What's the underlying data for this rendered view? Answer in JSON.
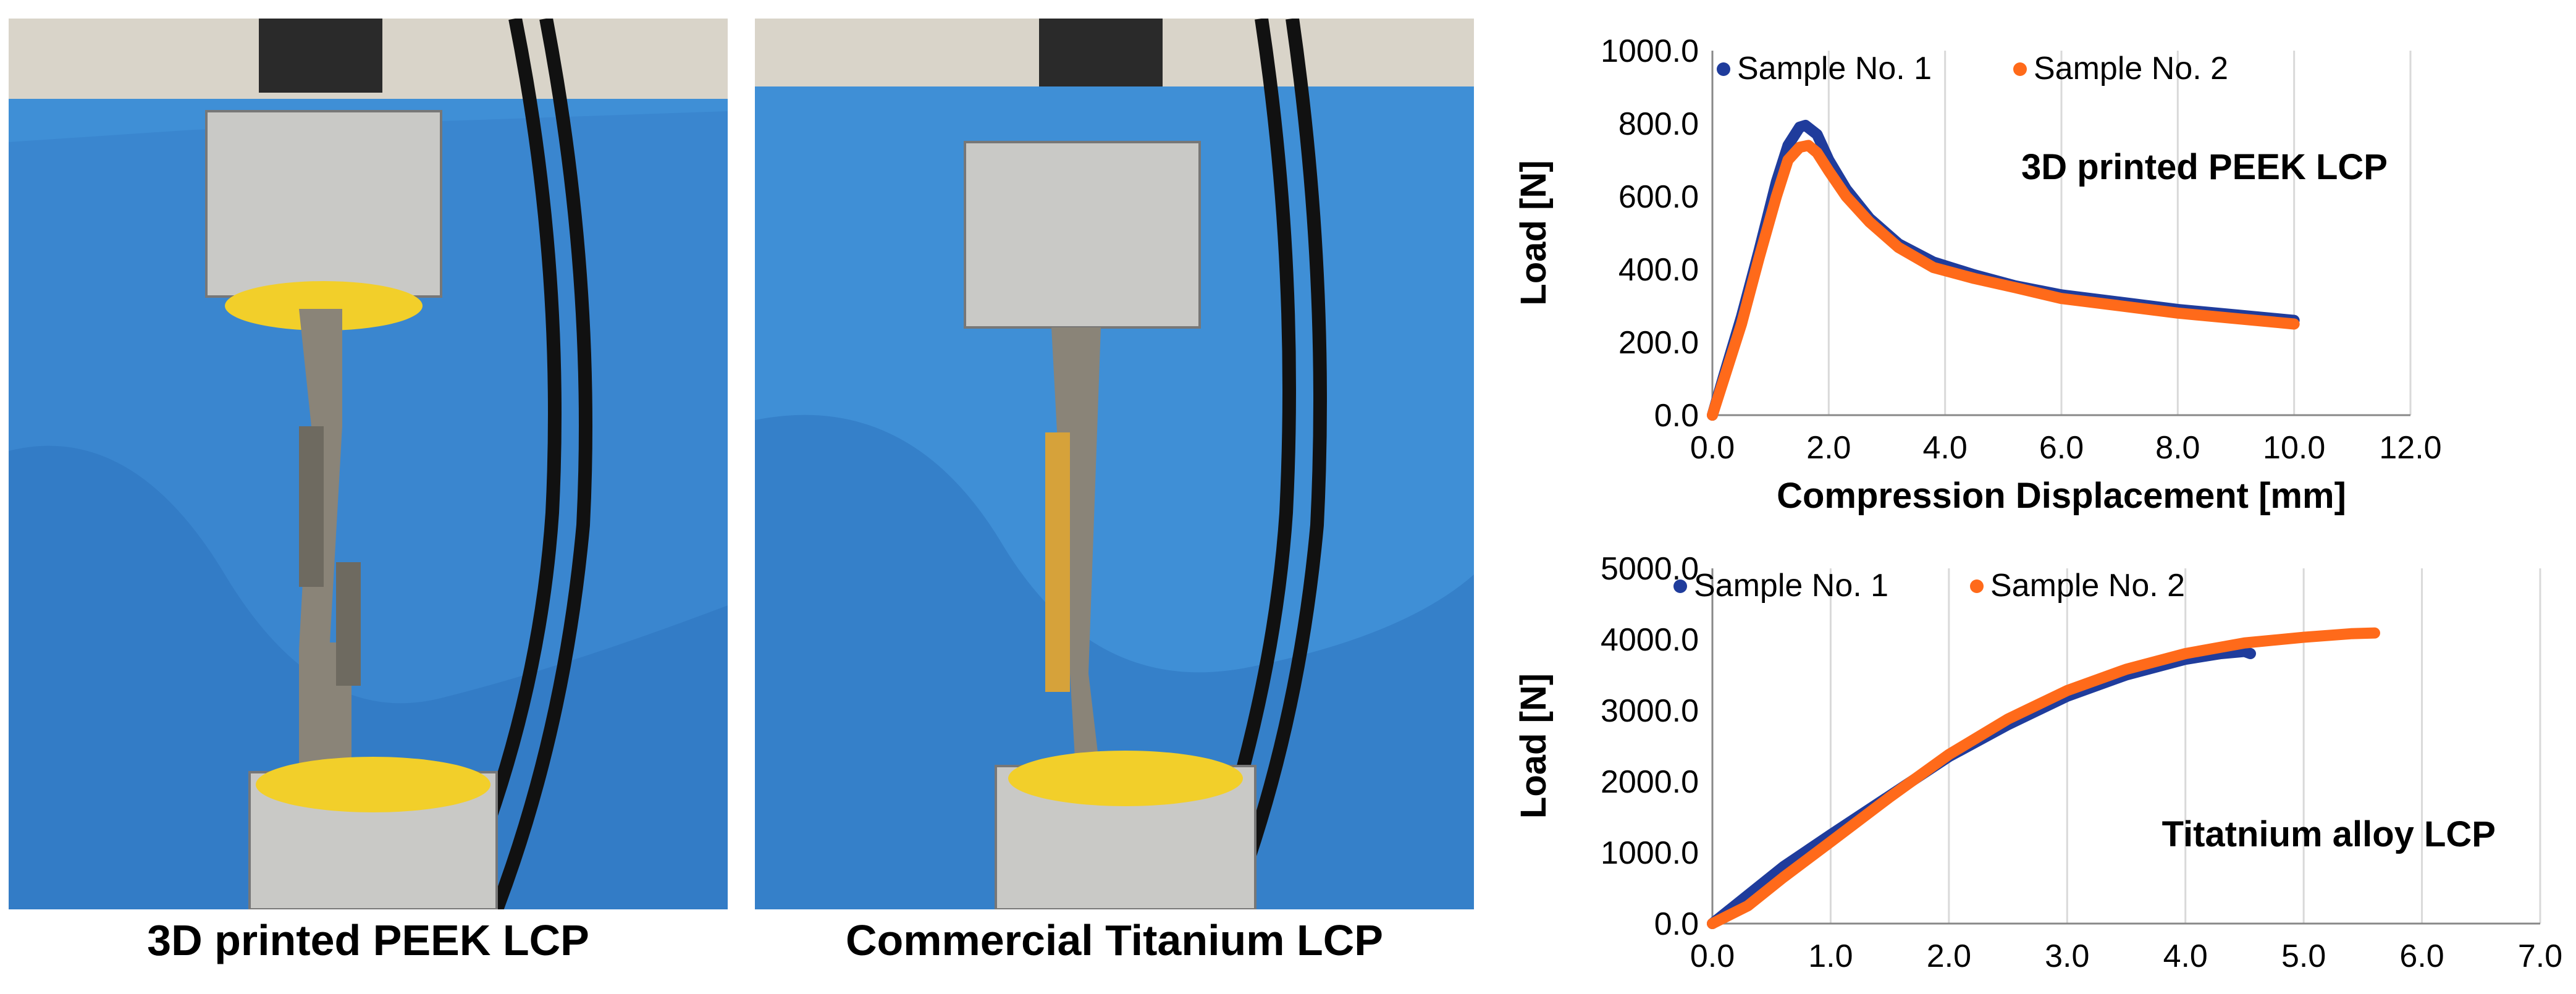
{
  "photos": {
    "left_caption": "3D printed PEEK LCP",
    "right_caption": "Commercial Titanium LCP"
  },
  "colors": {
    "sample1": "#1f3c9c",
    "sample2": "#ff6a1a",
    "curtain": "#3f8fd6",
    "grid": "#d9d9d9"
  },
  "chart_data": [
    {
      "type": "line",
      "annotation": "3D printed PEEK LCP",
      "xlabel": "Compression Displacement [mm]",
      "ylabel": "Load [N]",
      "xlim": [
        0,
        12
      ],
      "ylim": [
        0,
        1000
      ],
      "xticks": [
        "0.0",
        "2.0",
        "4.0",
        "6.0",
        "8.0",
        "10.0",
        "12.0"
      ],
      "yticks": [
        "0.0",
        "200.0",
        "400.0",
        "600.0",
        "800.0",
        "1000.0"
      ],
      "grid": "vertical",
      "legend": "top",
      "series": [
        {
          "name": "Sample No. 1",
          "x": [
            0,
            0.2,
            0.5,
            0.8,
            1.1,
            1.3,
            1.5,
            1.6,
            1.8,
            2.0,
            2.3,
            2.7,
            3.2,
            3.8,
            4.5,
            5.2,
            6.0,
            7.0,
            8.0,
            9.0,
            10.0
          ],
          "y": [
            0,
            110,
            270,
            450,
            640,
            740,
            790,
            795,
            770,
            700,
            620,
            540,
            470,
            420,
            385,
            355,
            330,
            310,
            290,
            275,
            260
          ]
        },
        {
          "name": "Sample No. 2",
          "x": [
            0,
            0.2,
            0.5,
            0.8,
            1.1,
            1.3,
            1.5,
            1.65,
            1.8,
            2.0,
            2.3,
            2.7,
            3.2,
            3.8,
            4.5,
            5.2,
            6.0,
            7.0,
            8.0,
            9.0,
            10.0
          ],
          "y": [
            0,
            100,
            250,
            430,
            600,
            700,
            735,
            740,
            720,
            670,
            600,
            530,
            460,
            405,
            375,
            350,
            320,
            300,
            280,
            265,
            250
          ]
        }
      ]
    },
    {
      "type": "line",
      "annotation": "Titatnium alloy LCP",
      "xlabel": "",
      "ylabel": "Load [N]",
      "xlim": [
        0,
        7
      ],
      "ylim": [
        0,
        5000
      ],
      "xticks": [
        "0.0",
        "1.0",
        "2.0",
        "3.0",
        "4.0",
        "5.0",
        "6.0",
        "7.0"
      ],
      "yticks": [
        "0.0",
        "1000.0",
        "2000.0",
        "3000.0",
        "4000.0",
        "5000.0"
      ],
      "grid": "vertical",
      "legend": "top",
      "series": [
        {
          "name": "Sample No. 1",
          "x": [
            0,
            0.3,
            0.6,
            1.0,
            1.5,
            2.0,
            2.5,
            3.0,
            3.5,
            4.0,
            4.3,
            4.5,
            4.55
          ],
          "y": [
            0,
            400,
            800,
            1250,
            1800,
            2350,
            2800,
            3200,
            3500,
            3720,
            3800,
            3830,
            3800
          ]
        },
        {
          "name": "Sample No. 2",
          "x": [
            0,
            0.3,
            0.6,
            1.0,
            1.5,
            2.0,
            2.5,
            3.0,
            3.5,
            4.0,
            4.5,
            5.0,
            5.4,
            5.6
          ],
          "y": [
            0,
            250,
            650,
            1150,
            1780,
            2380,
            2880,
            3280,
            3580,
            3800,
            3950,
            4030,
            4080,
            4090
          ]
        }
      ]
    }
  ]
}
